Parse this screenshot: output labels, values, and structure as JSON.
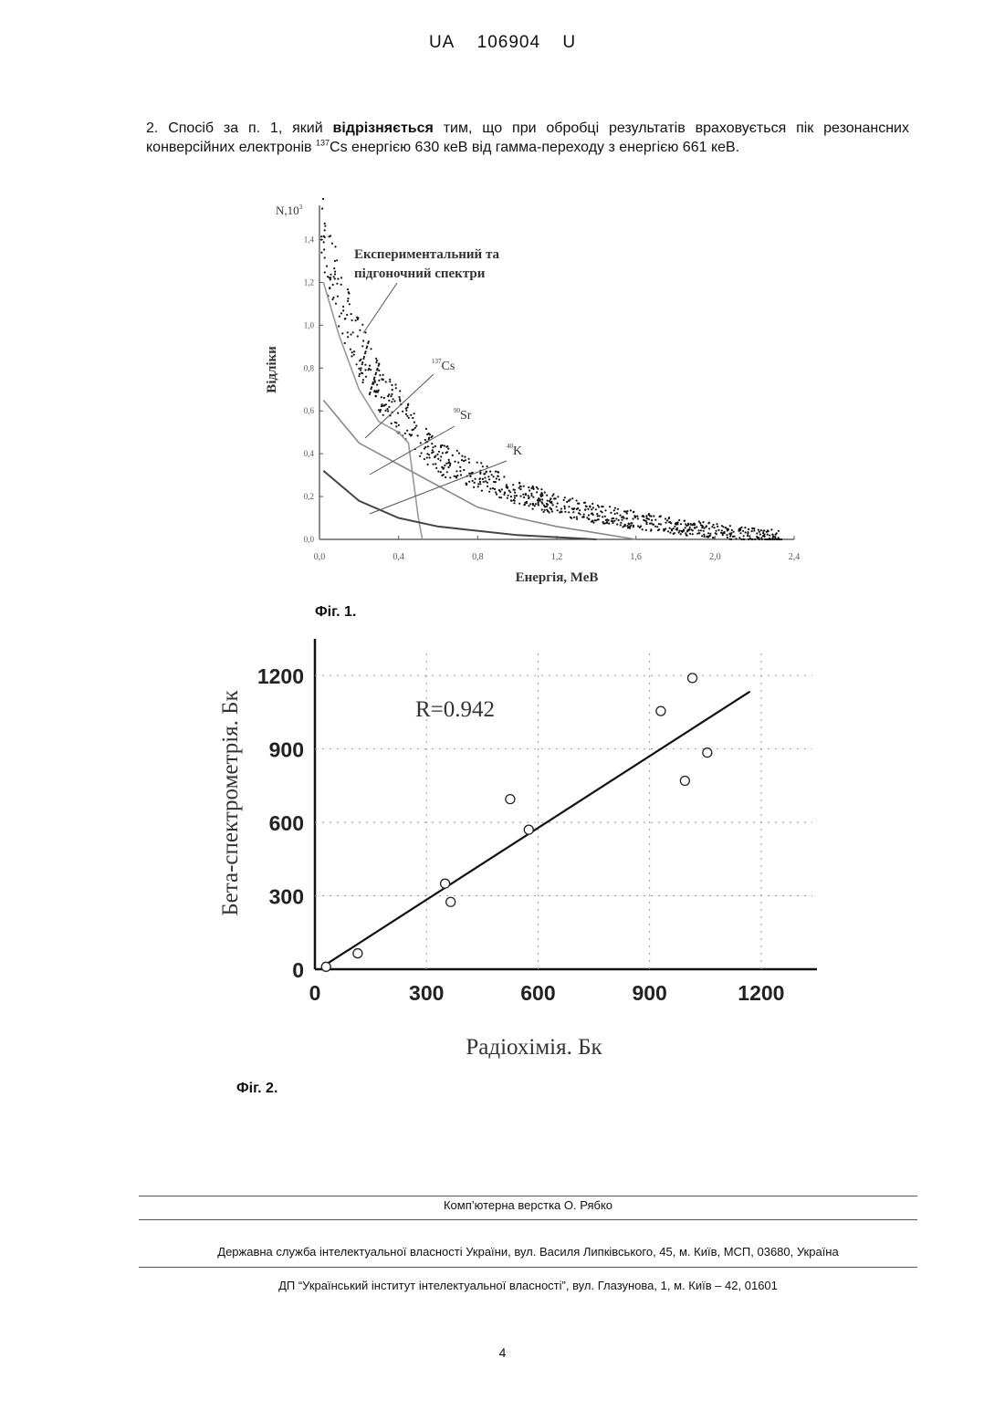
{
  "header": {
    "country": "UA",
    "number": "106904",
    "kind": "U"
  },
  "claim": {
    "part1": "2. Спосіб за п. 1, який ",
    "bold": "відрізняється",
    "part2": " тим, що при обробці результатів враховується пік резонансних конверсійних електронів ",
    "sup": "137",
    "part3": "Cs енергією 630 кеВ від гамма-переходу з енергією 661 кеВ."
  },
  "fig1": {
    "caption": "Фіг. 1.",
    "y_axis_label": "Відліки",
    "y_axis_top_label": "N,10",
    "y_axis_top_sup": "3",
    "x_axis_label": "Енергія, МеВ",
    "annot_exp_line1": "Експериментальний та",
    "annot_exp_line2": "підгоночний спектри",
    "annot_cs": "Cs",
    "annot_cs_sup": "137",
    "annot_sr": "Sr",
    "annot_sr_sup": "90",
    "annot_k": "K",
    "annot_k_sup": "40"
  },
  "fig2": {
    "caption": "Фіг. 2.",
    "r_label": "R=0.942"
  },
  "footer": {
    "layout_credit": "Комп’ютерна верстка О. Рябко",
    "office": "Державна служба інтелектуальної власності України, вул. Василя Липківського, 45, м. Київ, МСП, 03680, Україна",
    "institute": "ДП “Український інститут інтелектуальної власності”, вул. Глазунова, 1, м. Київ – 42, 01601"
  },
  "page_number": "4",
  "chart_data": [
    {
      "type": "scatter",
      "title": "",
      "xlabel": "Енергія, МеВ",
      "ylabel": "Відліки",
      "xlim": [
        0.0,
        2.4
      ],
      "ylim": [
        0.0,
        1.5
      ],
      "x_ticks": [
        "0,0",
        "0,4",
        "0,8",
        "1,2",
        "1,6",
        "2,0",
        "2,4"
      ],
      "y_ticks": [
        "0,0",
        "0,2",
        "0,4",
        "0,6",
        "0,8",
        "1,0",
        "1,2",
        "1,4"
      ],
      "series": [
        {
          "name": "Експериментальний та підгоночний спектри",
          "x": [
            0.0,
            0.1,
            0.2,
            0.3,
            0.4,
            0.5,
            0.6,
            0.8,
            1.0,
            1.2,
            1.4,
            1.6,
            1.8,
            2.0,
            2.2,
            2.35
          ],
          "values": [
            1.45,
            1.15,
            0.9,
            0.72,
            0.6,
            0.48,
            0.38,
            0.3,
            0.22,
            0.16,
            0.12,
            0.09,
            0.06,
            0.04,
            0.02,
            0.01
          ]
        },
        {
          "name": "Cs",
          "x": [
            0.02,
            0.1,
            0.2,
            0.3,
            0.4,
            0.45,
            0.5,
            0.52
          ],
          "values": [
            1.2,
            0.95,
            0.7,
            0.55,
            0.5,
            0.45,
            0.1,
            0.0
          ]
        },
        {
          "name": "Sr",
          "x": [
            0.02,
            0.2,
            0.4,
            0.6,
            0.8,
            1.0,
            1.2,
            1.4,
            1.6
          ],
          "values": [
            0.65,
            0.45,
            0.35,
            0.25,
            0.15,
            0.1,
            0.06,
            0.03,
            0.0
          ]
        },
        {
          "name": "K",
          "x": [
            0.02,
            0.2,
            0.4,
            0.6,
            0.8,
            1.0,
            1.2,
            1.4
          ],
          "values": [
            0.32,
            0.18,
            0.1,
            0.06,
            0.04,
            0.02,
            0.01,
            0.0
          ]
        }
      ]
    },
    {
      "type": "scatter",
      "title": "",
      "xlabel": "Радіохімія. Бк",
      "ylabel": "Бета-спектрометрія. Бк",
      "xlim": [
        0,
        1350
      ],
      "ylim": [
        0,
        1350
      ],
      "x_ticks": [
        "0",
        "300",
        "600",
        "900",
        "1200"
      ],
      "y_ticks": [
        "0",
        "300",
        "600",
        "900",
        "1200"
      ],
      "annotation": "R=0.942",
      "points": {
        "x": [
          30,
          115,
          350,
          365,
          525,
          575,
          930,
          995,
          1015,
          1055
        ],
        "y": [
          10,
          65,
          350,
          275,
          695,
          570,
          1055,
          770,
          1190,
          885
        ]
      },
      "fit_line": {
        "x": [
          20,
          1170
        ],
        "y": [
          10,
          1135
        ]
      }
    }
  ]
}
